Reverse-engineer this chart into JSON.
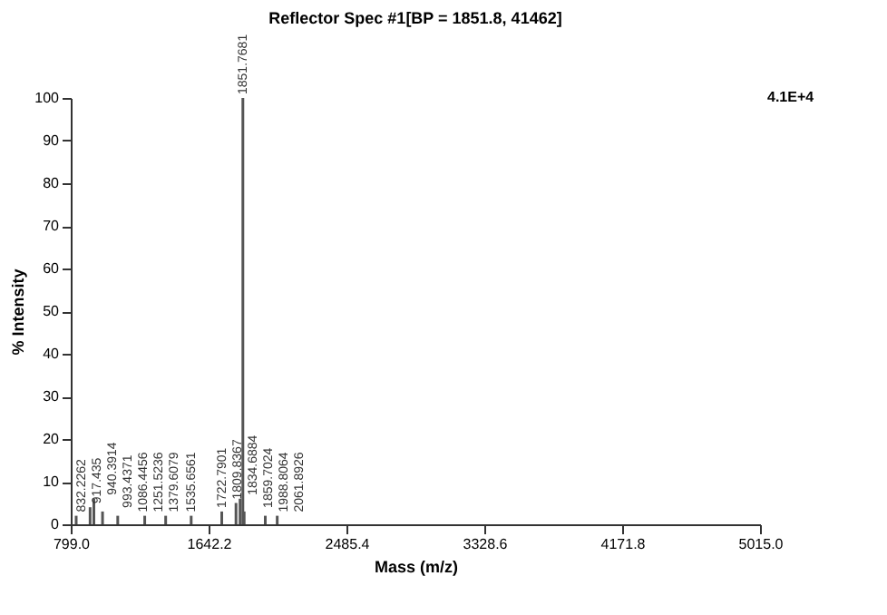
{
  "chart_data": {
    "type": "bar",
    "title": "Reflector Spec #1[BP = 1851.8, 41462]",
    "xlabel": "Mass (m/z)",
    "ylabel": "% Intensity",
    "x": [
      832.2262,
      917.435,
      940.3914,
      993.4371,
      1086.4456,
      1251.5236,
      1379.6079,
      1535.6561,
      1722.7901,
      1809.8367,
      1834.6884,
      1851.7681,
      1859.7024,
      1988.8064,
      2061.8926
    ],
    "values": [
      2,
      4,
      6,
      3,
      2,
      2,
      2,
      2,
      3,
      5,
      6,
      100,
      3,
      2,
      2
    ],
    "color": "#555555",
    "xlim": [
      799.0,
      5015.0
    ],
    "xticks": [
      {
        "value": 799.0,
        "label": "799.0"
      },
      {
        "value": 1642.2,
        "label": "1642.2"
      },
      {
        "value": 2485.4,
        "label": "2485.4"
      },
      {
        "value": 3328.6,
        "label": "3328.6"
      },
      {
        "value": 4171.8,
        "label": "4171.8"
      },
      {
        "value": 5015.0,
        "label": "5015.0"
      }
    ],
    "ylim": [
      0,
      100
    ],
    "yticks": [
      0,
      10,
      20,
      30,
      40,
      50,
      60,
      70,
      80,
      90,
      100
    ],
    "annotations": [
      "4.1E+4",
      {
        "text": "832.2262",
        "x": 832.2262,
        "y": 2
      },
      {
        "text": "917.435",
        "x": 917.435,
        "y": 4
      },
      {
        "text": "940.3914",
        "x": 940.3914,
        "y": 6
      },
      {
        "text": "993.4371",
        "x": 993.4371,
        "y": 3
      },
      {
        "text": "1086.4456",
        "x": 1086.4456,
        "y": 2
      },
      {
        "text": "1251.5236",
        "x": 1251.5236,
        "y": 2
      },
      {
        "text": "1379.6079",
        "x": 1379.6079,
        "y": 2
      },
      {
        "text": "1535.6561",
        "x": 1535.6561,
        "y": 2
      },
      {
        "text": "1722.7901",
        "x": 1722.7901,
        "y": 3
      },
      {
        "text": "1809.8367",
        "x": 1809.8367,
        "y": 5
      },
      {
        "text": "1834.6884",
        "x": 1834.6884,
        "y": 6
      },
      {
        "text": "1851.7681",
        "x": 1851.7681,
        "y": 100
      },
      {
        "text": "1859.7024",
        "x": 1859.7024,
        "y": 3
      },
      {
        "text": "1988.8064",
        "x": 1988.8064,
        "y": 2
      },
      {
        "text": "2061.8926",
        "x": 2061.8926,
        "y": 2
      }
    ]
  }
}
